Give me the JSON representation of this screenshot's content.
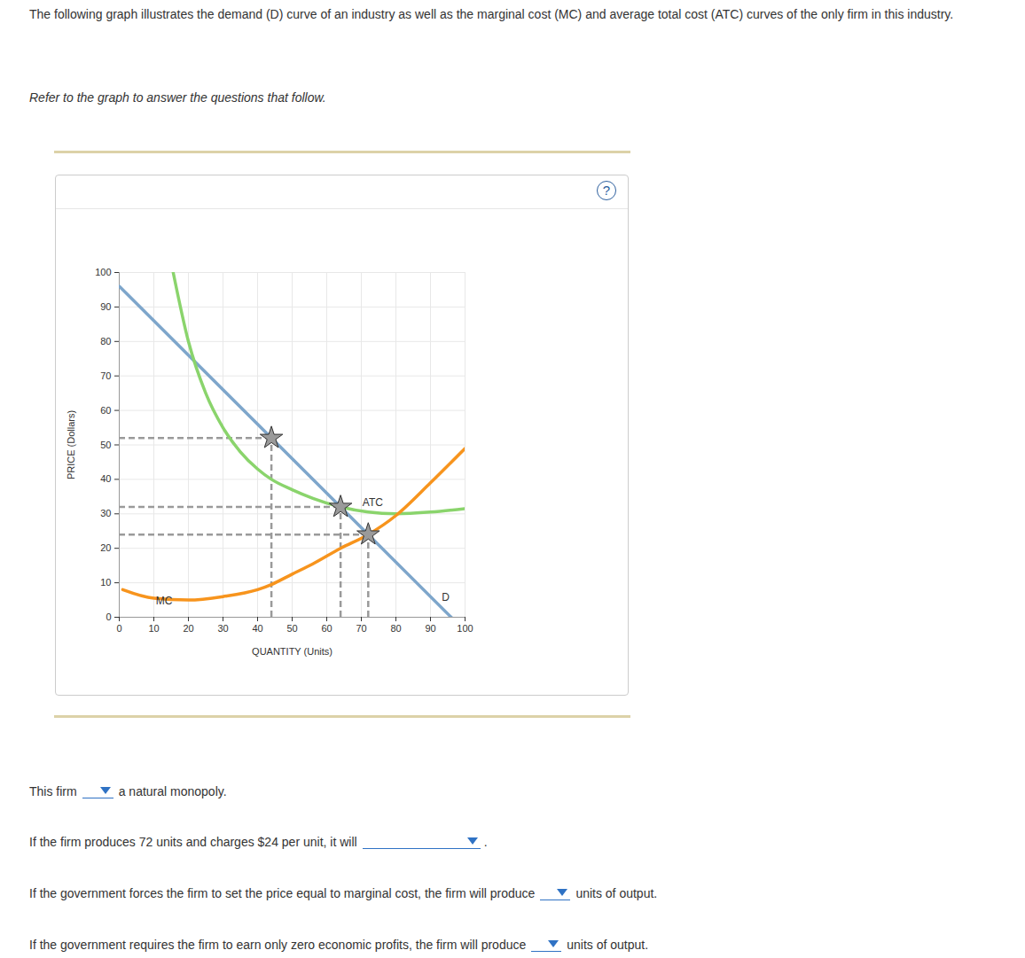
{
  "page": {
    "intro": "The following graph illustrates the demand (D) curve of an industry as well as the marginal cost (MC) and average total cost (ATC) curves of the only firm in this industry.",
    "instruction": "Refer to the graph to answer the questions that follow.",
    "help": "?",
    "questions": [
      {
        "before": "This firm",
        "after": "a natural monopoly."
      },
      {
        "before": "If the firm produces 72 units and charges $24 per unit, it will",
        "after": "."
      },
      {
        "before": "If the government forces the firm to set the price equal to marginal cost, the firm will produce",
        "after": "units of output."
      },
      {
        "before": "If the government requires the firm to earn only zero economic profits, the firm will produce",
        "after": "units of output."
      }
    ]
  },
  "chart_data": {
    "type": "line",
    "x_label": "QUANTITY (Units)",
    "y_label": "PRICE (Dollars)",
    "xlim": [
      0,
      100
    ],
    "ylim": [
      0,
      100
    ],
    "xticks": [
      0,
      10,
      20,
      30,
      40,
      50,
      60,
      70,
      80,
      90,
      100
    ],
    "yticks": [
      0,
      10,
      20,
      30,
      40,
      50,
      60,
      70,
      80,
      90,
      100
    ],
    "grid": true,
    "series": [
      {
        "name": "D",
        "color": "#7ea6cb",
        "label_position": [
          94.4,
          5.7
        ],
        "x": [
          0,
          96
        ],
        "values": [
          96,
          0
        ]
      },
      {
        "name": "ATC",
        "color": "#8ad46c",
        "label_position": [
          73.3,
          33.2
        ],
        "x": [
          15.6,
          20,
          25,
          30,
          35,
          40,
          44,
          50,
          56,
          64,
          72,
          80,
          90,
          100
        ],
        "values": [
          100,
          80,
          65,
          55,
          48,
          43,
          40,
          37,
          34.5,
          32,
          30.5,
          30,
          30.5,
          31.5
        ]
      },
      {
        "name": "MC",
        "color": "#f7941d",
        "label_position": [
          13,
          4.6
        ],
        "x": [
          1,
          10,
          20,
          30,
          40,
          44,
          50,
          56,
          64,
          72,
          80,
          90,
          100
        ],
        "values": [
          8,
          5.5,
          5,
          6,
          8,
          9.5,
          12.5,
          15.5,
          20,
          24,
          29.5,
          39,
          49
        ]
      },
      {
        "type": "scatter",
        "marker": "star",
        "line_style": "dashed",
        "color": "#9a9a9a",
        "x": [
          44,
          64,
          72
        ],
        "values": [
          52,
          32,
          24
        ]
      }
    ]
  }
}
